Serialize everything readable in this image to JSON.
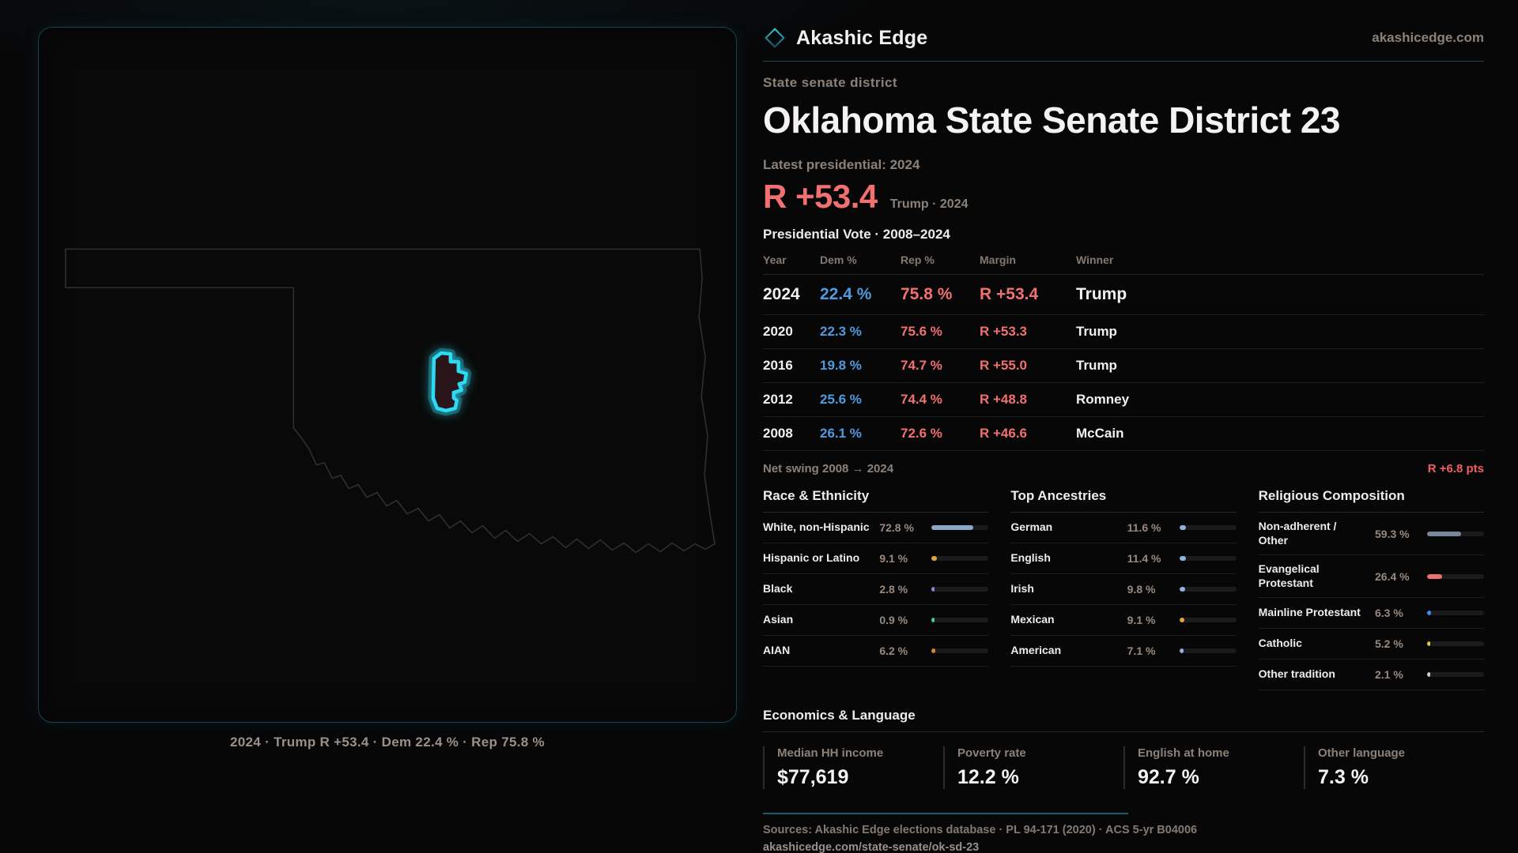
{
  "brand": {
    "name": "Akashic Edge",
    "domain": "akashicedge.com"
  },
  "eyebrow": "State senate district",
  "title": "Oklahoma State Senate District 23",
  "latest_label": "Latest presidential: 2024",
  "headline_margin": {
    "value": "R +53.4",
    "sub": "Trump · 2024"
  },
  "pres_table": {
    "title": "Presidential Vote · 2008–2024",
    "columns": [
      "Year",
      "Dem %",
      "Rep %",
      "Margin",
      "Winner"
    ],
    "rows": [
      {
        "year": "2024",
        "dem": "22.4 %",
        "rep": "75.8 %",
        "margin": "R +53.4",
        "winner": "Trump"
      },
      {
        "year": "2020",
        "dem": "22.3 %",
        "rep": "75.6 %",
        "margin": "R +53.3",
        "winner": "Trump"
      },
      {
        "year": "2016",
        "dem": "19.8 %",
        "rep": "74.7 %",
        "margin": "R +55.0",
        "winner": "Trump"
      },
      {
        "year": "2012",
        "dem": "25.6 %",
        "rep": "74.4 %",
        "margin": "R +48.8",
        "winner": "Romney"
      },
      {
        "year": "2008",
        "dem": "26.1 %",
        "rep": "72.6 %",
        "margin": "R +46.6",
        "winner": "McCain"
      }
    ]
  },
  "net_swing": {
    "label": "Net swing 2008 → 2024",
    "value": "R +6.8 pts"
  },
  "race": {
    "title": "Race & Ethnicity",
    "items": [
      {
        "label": "White, non-Hispanic",
        "value": "72.8 %",
        "pct": 72.8,
        "color": "#8da7c7"
      },
      {
        "label": "Hispanic or Latino",
        "value": "9.1 %",
        "pct": 9.1,
        "color": "#e4a63b"
      },
      {
        "label": "Black",
        "value": "2.8 %",
        "pct": 2.8,
        "color": "#9b7fd6"
      },
      {
        "label": "Asian",
        "value": "0.9 %",
        "pct": 0.9,
        "color": "#43d1a0"
      },
      {
        "label": "AIAN",
        "value": "6.2 %",
        "pct": 6.2,
        "color": "#d9832f"
      }
    ]
  },
  "ancestries": {
    "title": "Top Ancestries",
    "items": [
      {
        "label": "German",
        "value": "11.6 %",
        "pct": 11.6,
        "color": "#8fb3d9"
      },
      {
        "label": "English",
        "value": "11.4 %",
        "pct": 11.4,
        "color": "#8fb3d9"
      },
      {
        "label": "Irish",
        "value": "9.8 %",
        "pct": 9.8,
        "color": "#8fb3d9"
      },
      {
        "label": "Mexican",
        "value": "9.1 %",
        "pct": 9.1,
        "color": "#e4a63b"
      },
      {
        "label": "American",
        "value": "7.1 %",
        "pct": 7.1,
        "color": "#8fb3d9"
      }
    ]
  },
  "religion": {
    "title": "Religious Composition",
    "items": [
      {
        "label": "Non-adherent / Other",
        "value": "59.3 %",
        "pct": 59.3,
        "color": "#76879c"
      },
      {
        "label": "Evangelical Protestant",
        "value": "26.4 %",
        "pct": 26.4,
        "color": "#e87272"
      },
      {
        "label": "Mainline Protestant",
        "value": "6.3 %",
        "pct": 6.3,
        "color": "#3f8fe8"
      },
      {
        "label": "Catholic",
        "value": "5.2 %",
        "pct": 5.2,
        "color": "#e8c63d"
      },
      {
        "label": "Other tradition",
        "value": "2.1 %",
        "pct": 2.1,
        "color": "#cfcfcf"
      }
    ]
  },
  "economics": {
    "title": "Economics & Language",
    "stats": [
      {
        "label": "Median HH income",
        "value": "$77,619"
      },
      {
        "label": "Poverty rate",
        "value": "12.2 %"
      },
      {
        "label": "English at home",
        "value": "92.7 %"
      },
      {
        "label": "Other language",
        "value": "7.3 %"
      }
    ]
  },
  "footer": {
    "sources": "Sources: Akashic Edge elections database · PL 94-171 (2020) · ACS 5-yr B04006",
    "url": "akashicedge.com/state-senate/ok-sd-23"
  },
  "map": {
    "caption": "2024 · Trump R +53.4 · Dem 22.4 % · Rep 75.8 %",
    "district_color": "#2fd9f2",
    "district_fill": "#2a161a",
    "outline_color": "#2f2f2f"
  },
  "colors": {
    "accent_red": "#f17070",
    "accent_blue": "#4f9be0",
    "accent_teal": "#2fd9f2",
    "muted": "#8b8178"
  }
}
